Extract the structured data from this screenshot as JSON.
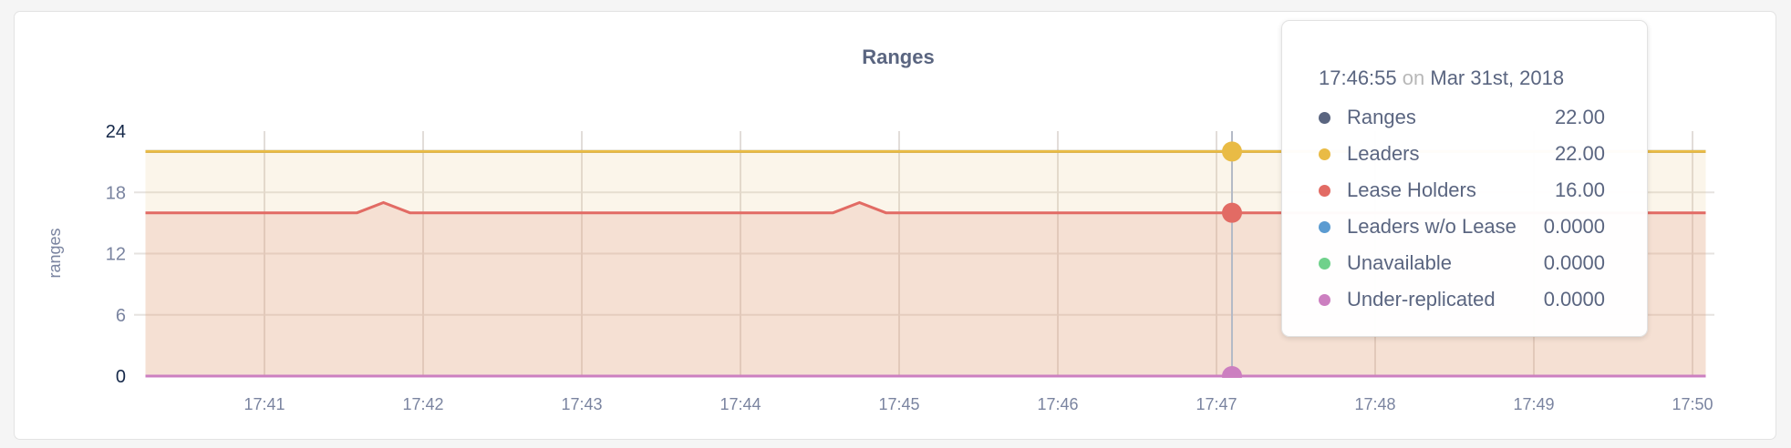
{
  "chart_data": {
    "type": "area",
    "title": "Ranges",
    "ylabel": "ranges",
    "xlabel": "",
    "ylim": [
      0,
      24
    ],
    "xlim": [
      "17:40:15",
      "17:50:05"
    ],
    "yticks": [
      "0",
      "6",
      "12",
      "18",
      "24"
    ],
    "xticks": [
      "17:41",
      "17:42",
      "17:43",
      "17:44",
      "17:45",
      "17:46",
      "17:47",
      "17:48",
      "17:49",
      "17:50"
    ],
    "grid": true,
    "series": [
      {
        "name": "Ranges",
        "color": "#5a6580",
        "points": [
          [
            "17:40:15",
            22
          ],
          [
            "17:50:05",
            22
          ]
        ]
      },
      {
        "name": "Leaders",
        "color": "#e9bb45",
        "points": [
          [
            "17:40:15",
            22
          ],
          [
            "17:50:05",
            22
          ]
        ]
      },
      {
        "name": "Lease Holders",
        "color": "#e26b64",
        "points": [
          [
            "17:40:15",
            16
          ],
          [
            "17:41:35",
            16
          ],
          [
            "17:41:45",
            17
          ],
          [
            "17:41:55",
            16
          ],
          [
            "17:44:35",
            16
          ],
          [
            "17:44:45",
            17
          ],
          [
            "17:44:55",
            16
          ],
          [
            "17:50:05",
            16
          ]
        ]
      },
      {
        "name": "Leaders w/o Lease",
        "color": "#5b9bd1",
        "points": [
          [
            "17:40:15",
            0
          ],
          [
            "17:50:05",
            0
          ]
        ]
      },
      {
        "name": "Unavailable",
        "color": "#6fd18b",
        "points": [
          [
            "17:40:15",
            0
          ],
          [
            "17:50:05",
            0
          ]
        ]
      },
      {
        "name": "Under-replicated",
        "color": "#cc7fc0",
        "points": [
          [
            "17:40:15",
            0
          ],
          [
            "17:50:05",
            0
          ]
        ]
      }
    ]
  },
  "tooltip": {
    "time": "17:46:55",
    "on": "on",
    "date": "Mar 31st, 2018",
    "rows": [
      {
        "label": "Ranges",
        "value": "22.00",
        "color": "#5a6580"
      },
      {
        "label": "Leaders",
        "value": "22.00",
        "color": "#e9bb45"
      },
      {
        "label": "Lease Holders",
        "value": "16.00",
        "color": "#e26b64"
      },
      {
        "label": "Leaders w/o Lease",
        "value": "0.0000",
        "color": "#5b9bd1"
      },
      {
        "label": "Unavailable",
        "value": "0.0000",
        "color": "#6fd18b"
      },
      {
        "label": "Under-replicated",
        "value": "0.0000",
        "color": "#cc7fc0"
      }
    ]
  }
}
